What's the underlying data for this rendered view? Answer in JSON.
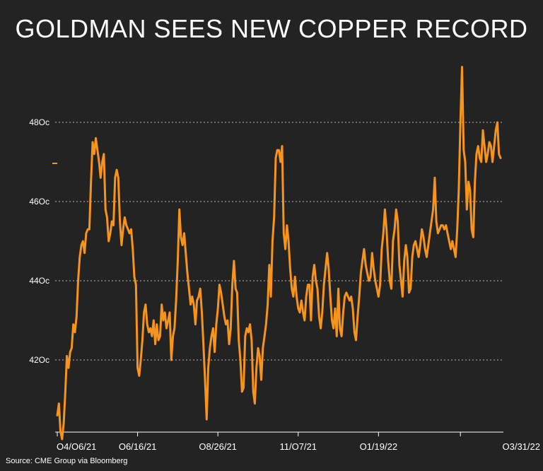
{
  "chart_data": {
    "type": "line",
    "title": "GOLDMAN SEES NEW COPPER RECORD",
    "source": "Source: CME Group via Bloomberg",
    "xlabel": "",
    "ylabel": "",
    "ylim": [
      40.0,
      49.5
    ],
    "y_ticks": [
      {
        "value": 42,
        "label": "42Oc"
      },
      {
        "value": 44,
        "label": "44Oc"
      },
      {
        "value": 46,
        "label": "46Oc"
      },
      {
        "value": 48,
        "label": "48Oc"
      }
    ],
    "x_ticks": [
      {
        "index": 0,
        "label": "O4/O6/21"
      },
      {
        "index": 50,
        "label": "O6/16/21"
      },
      {
        "index": 100,
        "label": "O8/26/21"
      },
      {
        "index": 150,
        "label": "11/O7/21"
      },
      {
        "index": 200,
        "label": "O1/19/22"
      },
      {
        "index": 251,
        "label": "O3/31/22"
      }
    ],
    "grid": "horizontal-dotted",
    "line_color": "#f7941d",
    "series": [
      {
        "values": [
          40.6,
          40.9,
          40.2,
          40.0,
          40.4,
          41.2,
          42.1,
          41.8,
          42.2,
          42.3,
          42.9,
          42.7,
          43.1,
          44.0,
          44.6,
          44.9,
          45.0,
          44.7,
          45.2,
          45.3,
          45.3,
          46.5,
          47.5,
          47.2,
          47.6,
          47.3,
          47.0,
          46.6,
          47.0,
          47.2,
          45.8,
          45.6,
          45.0,
          45.2,
          45.5,
          45.4,
          46.6,
          46.8,
          46.6,
          45.5,
          44.9,
          45.3,
          45.6,
          45.4,
          45.3,
          45.2,
          45.3,
          44.8,
          44.1,
          43.9,
          41.8,
          41.6,
          42.0,
          42.5,
          43.2,
          43.4,
          42.9,
          42.7,
          42.8,
          42.6,
          43.0,
          42.4,
          42.9,
          42.5,
          42.6,
          43.4,
          43.0,
          43.2,
          42.8,
          43.0,
          43.2,
          42.0,
          42.6,
          42.8,
          43.5,
          44.5,
          45.8,
          45.1,
          44.9,
          45.2,
          44.7,
          44.2,
          43.8,
          43.4,
          43.6,
          43.4,
          42.9,
          43.5,
          43.6,
          43.8,
          43.2,
          42.4,
          41.5,
          40.5,
          41.8,
          42.3,
          42.6,
          42.8,
          42.2,
          42.9,
          43.3,
          43.9,
          43.7,
          43.4,
          43.1,
          42.9,
          43.0,
          42.4,
          42.8,
          43.9,
          44.5,
          43.8,
          43.7,
          42.5,
          42.0,
          41.2,
          41.3,
          42.6,
          42.8,
          42.7,
          42.9,
          42.5,
          41.2,
          40.9,
          41.8,
          42.3,
          42.1,
          41.5,
          42.3,
          42.6,
          42.9,
          43.4,
          44.4,
          43.6,
          45.0,
          45.6,
          47.1,
          47.3,
          47.3,
          47.0,
          47.4,
          45.2,
          44.8,
          45.4,
          45.0,
          44.3,
          43.8,
          43.6,
          44.1,
          43.6,
          43.3,
          43.2,
          43.5,
          43.2,
          43.0,
          43.6,
          43.9,
          43.9,
          43.0,
          44.1,
          44.4,
          44.0,
          43.8,
          43.1,
          42.8,
          43.2,
          43.9,
          44.3,
          44.7,
          44.3,
          43.6,
          43.0,
          42.8,
          43.3,
          42.6,
          43.8,
          42.8,
          42.6,
          43.2,
          43.6,
          43.7,
          43.6,
          43.5,
          43.6,
          43.3,
          42.7,
          42.5,
          43.1,
          43.6,
          44.2,
          44.5,
          44.8,
          44.4,
          44.2,
          44.0,
          44.1,
          44.7,
          44.3,
          44.0,
          43.8,
          43.6,
          43.9,
          44.8,
          45.2,
          45.8,
          45.3,
          44.5,
          44.0,
          43.8,
          45.0,
          45.3,
          45.8,
          45.5,
          44.4,
          44.0,
          43.6,
          44.5,
          44.9,
          44.6,
          43.7,
          43.8,
          44.6,
          44.9,
          45.0,
          44.8,
          44.6,
          44.9,
          45.3,
          45.1,
          44.8,
          44.6,
          44.9,
          45.2,
          45.5,
          45.8,
          46.6,
          45.5,
          45.2,
          45.3,
          45.4,
          45.4,
          45.3,
          45.4,
          45.2,
          45.0,
          44.8,
          45.0,
          44.8,
          44.6,
          45.3,
          46.3,
          48.0,
          49.4,
          47.3,
          47.0,
          45.8,
          46.5,
          46.3,
          45.3,
          45.1,
          46.5,
          47.2,
          47.4,
          47.1,
          47.0,
          47.8,
          47.4,
          47.0,
          47.2,
          47.5,
          47.4,
          47.0,
          47.4,
          47.8,
          48.0,
          47.2,
          47.1
        ]
      }
    ]
  }
}
